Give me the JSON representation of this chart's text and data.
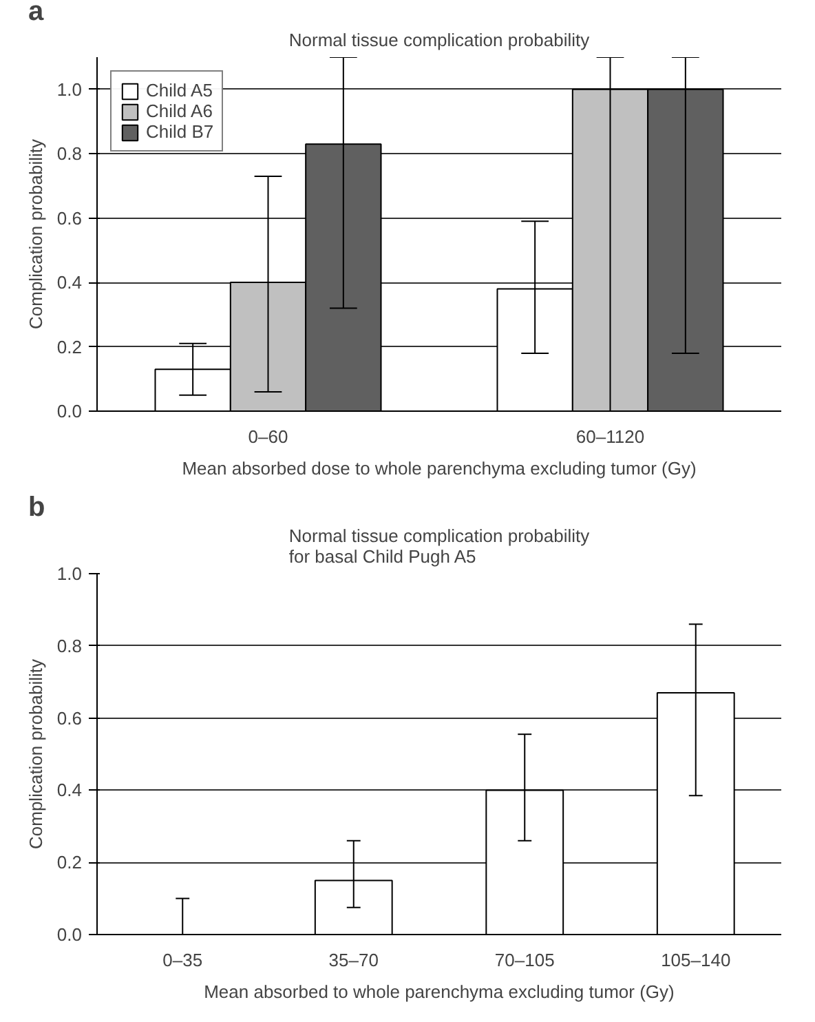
{
  "chart_data": [
    {
      "type": "bar",
      "title": "Normal tissue complication probability",
      "annotations": [
        "a"
      ],
      "xlabel": "Mean absorbed dose to whole parenchyma excluding tumor (Gy)",
      "ylabel": "Complication probability",
      "categories": [
        "0–60",
        "60–1120"
      ],
      "series": [
        {
          "name": "Child A5",
          "color": "#ffffff",
          "values": [
            0.13,
            0.38
          ],
          "errors": [
            [
              0.05,
              0.21
            ],
            [
              0.18,
              0.59
            ]
          ]
        },
        {
          "name": "Child A6",
          "color": "#c0c0c0",
          "values": [
            0.4,
            1.0
          ],
          "errors": [
            [
              0.06,
              0.73
            ],
            [
              0.0,
              1.1
            ]
          ]
        },
        {
          "name": "Child B7",
          "color": "#606060",
          "values": [
            0.83,
            1.0
          ],
          "errors": [
            [
              0.32,
              1.1
            ],
            [
              0.18,
              1.1
            ]
          ]
        }
      ],
      "ylim": [
        0,
        1.1
      ],
      "yticks": [
        {
          "value": 0,
          "label": "0.0"
        },
        {
          "value": 0.2,
          "label": "0.2"
        },
        {
          "value": 0.4,
          "label": "0.4"
        },
        {
          "value": 0.6,
          "label": "0.6"
        },
        {
          "value": 0.8,
          "label": "0.8"
        },
        {
          "value": 1.0,
          "label": "1.0"
        }
      ],
      "grid": "y",
      "legend": "top left"
    },
    {
      "type": "bar",
      "title": "Normal tissue complication probability\nfor basal Child Pugh A5",
      "annotations": [
        "b"
      ],
      "xlabel": "Mean absorbed to whole parenchyma excluding tumor (Gy)",
      "ylabel": "Complication probability",
      "categories": [
        "0–35",
        "35–70",
        "70–105",
        "105–140"
      ],
      "values": [
        0.0,
        0.15,
        0.4,
        0.67
      ],
      "color": "#ffffff",
      "errors": [
        [
          0.0,
          0.1
        ],
        [
          0.075,
          0.26
        ],
        [
          0.26,
          0.555
        ],
        [
          0.385,
          0.86
        ]
      ],
      "ylim": [
        0,
        1.0
      ],
      "yticks": [
        {
          "value": 0,
          "label": "0.0"
        },
        {
          "value": 0.2,
          "label": "0.2"
        },
        {
          "value": 0.4,
          "label": "0.4"
        },
        {
          "value": 0.6,
          "label": "0.6"
        },
        {
          "value": 0.8,
          "label": "0.8"
        },
        {
          "value": 1.0,
          "label": "1.0"
        }
      ],
      "grid": "y",
      "legend": false
    }
  ]
}
